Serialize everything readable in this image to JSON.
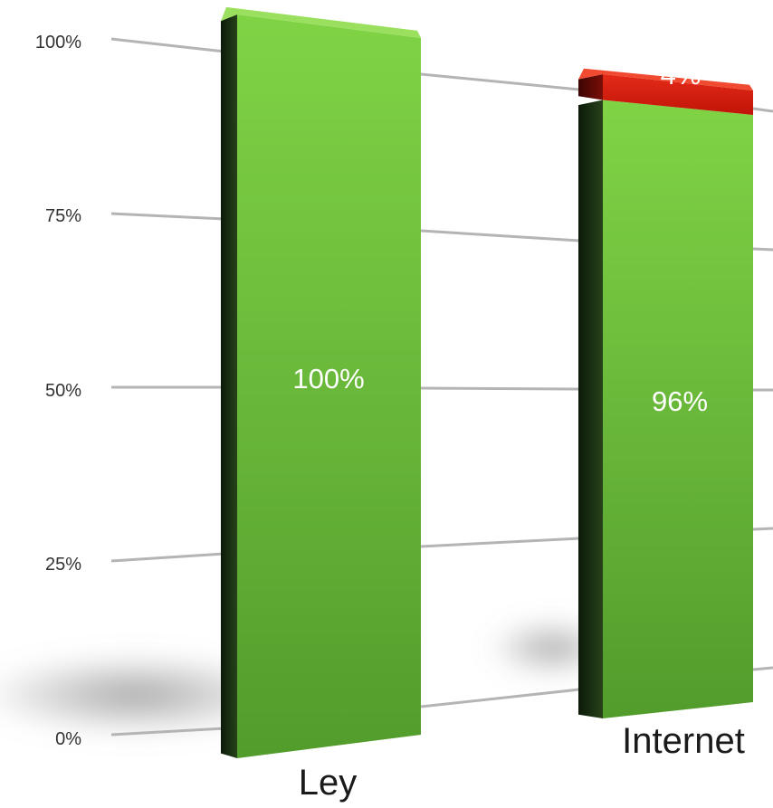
{
  "chart_data": {
    "type": "bar",
    "stacked": true,
    "style": "3d-perspective",
    "categories": [
      "Ley",
      "Internet"
    ],
    "series": [
      {
        "values": [
          100,
          96
        ],
        "color": "#6fbf3c",
        "labels": [
          "100%",
          "96%"
        ]
      },
      {
        "values": [
          0,
          4
        ],
        "color": "#d81c10",
        "labels": [
          "",
          "4%"
        ]
      }
    ],
    "y_ticks": [
      "0%",
      "25%",
      "50%",
      "75%",
      "100%"
    ],
    "ylim": [
      0,
      100
    ],
    "grid": true,
    "legend": "none"
  }
}
